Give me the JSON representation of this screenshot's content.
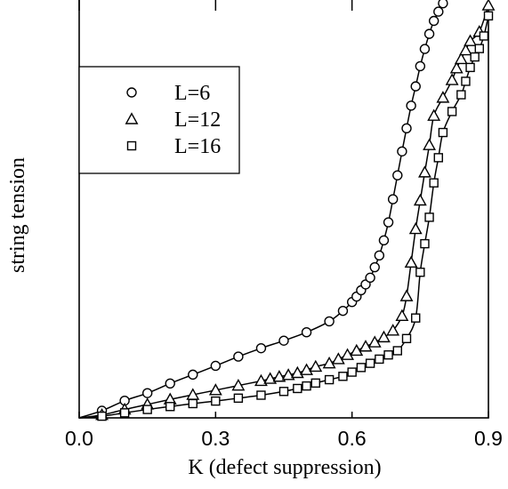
{
  "chart_data": {
    "type": "scatter",
    "xlabel": "K (defect suppression)",
    "ylabel": "string tension",
    "xlim": [
      0.0,
      0.9
    ],
    "ylim": [
      0.0,
      1.0
    ],
    "x_ticks": [
      "0.0",
      "0.3",
      "0.6",
      "0.9"
    ],
    "y_tick_labels": false,
    "legend_position": "upper-left",
    "series": [
      {
        "name": "L=6",
        "marker": "circle",
        "x": [
          0.05,
          0.1,
          0.15,
          0.2,
          0.25,
          0.3,
          0.35,
          0.4,
          0.45,
          0.5,
          0.55,
          0.58,
          0.6,
          0.61,
          0.62,
          0.63,
          0.64,
          0.65,
          0.66,
          0.67,
          0.68,
          0.69,
          0.7,
          0.71,
          0.72,
          0.73,
          0.74,
          0.75,
          0.76,
          0.77,
          0.78,
          0.79,
          0.8
        ],
        "y": [
          0.017,
          0.041,
          0.059,
          0.082,
          0.103,
          0.124,
          0.146,
          0.166,
          0.184,
          0.204,
          0.23,
          0.255,
          0.276,
          0.289,
          0.304,
          0.318,
          0.334,
          0.359,
          0.387,
          0.423,
          0.466,
          0.521,
          0.578,
          0.635,
          0.69,
          0.744,
          0.79,
          0.838,
          0.879,
          0.915,
          0.946,
          0.968,
          0.988
        ]
      },
      {
        "name": "L=12",
        "marker": "triangle",
        "x": [
          0.05,
          0.1,
          0.15,
          0.2,
          0.25,
          0.3,
          0.35,
          0.4,
          0.42,
          0.44,
          0.46,
          0.48,
          0.5,
          0.52,
          0.55,
          0.57,
          0.59,
          0.61,
          0.63,
          0.65,
          0.67,
          0.69,
          0.71,
          0.72,
          0.73,
          0.74,
          0.75,
          0.76,
          0.77,
          0.78,
          0.8,
          0.82,
          0.83,
          0.84,
          0.85,
          0.86,
          0.88,
          0.9
        ],
        "y": [
          0.007,
          0.02,
          0.032,
          0.044,
          0.055,
          0.066,
          0.077,
          0.088,
          0.093,
          0.098,
          0.102,
          0.107,
          0.114,
          0.122,
          0.13,
          0.14,
          0.15,
          0.16,
          0.17,
          0.18,
          0.192,
          0.208,
          0.243,
          0.29,
          0.37,
          0.45,
          0.518,
          0.585,
          0.65,
          0.72,
          0.763,
          0.805,
          0.833,
          0.855,
          0.876,
          0.898,
          0.92,
          0.983
        ]
      },
      {
        "name": "L=16",
        "marker": "square",
        "x": [
          0.05,
          0.1,
          0.15,
          0.2,
          0.25,
          0.3,
          0.35,
          0.4,
          0.45,
          0.48,
          0.5,
          0.52,
          0.55,
          0.58,
          0.6,
          0.62,
          0.64,
          0.66,
          0.68,
          0.7,
          0.72,
          0.74,
          0.75,
          0.76,
          0.77,
          0.78,
          0.79,
          0.8,
          0.82,
          0.84,
          0.85,
          0.86,
          0.87,
          0.88,
          0.89,
          0.9
        ],
        "y": [
          0.004,
          0.012,
          0.02,
          0.027,
          0.034,
          0.04,
          0.047,
          0.054,
          0.063,
          0.07,
          0.076,
          0.083,
          0.091,
          0.099,
          0.109,
          0.12,
          0.13,
          0.14,
          0.15,
          0.16,
          0.189,
          0.238,
          0.347,
          0.415,
          0.478,
          0.56,
          0.62,
          0.68,
          0.73,
          0.77,
          0.802,
          0.835,
          0.86,
          0.88,
          0.91,
          0.958
        ]
      }
    ]
  }
}
